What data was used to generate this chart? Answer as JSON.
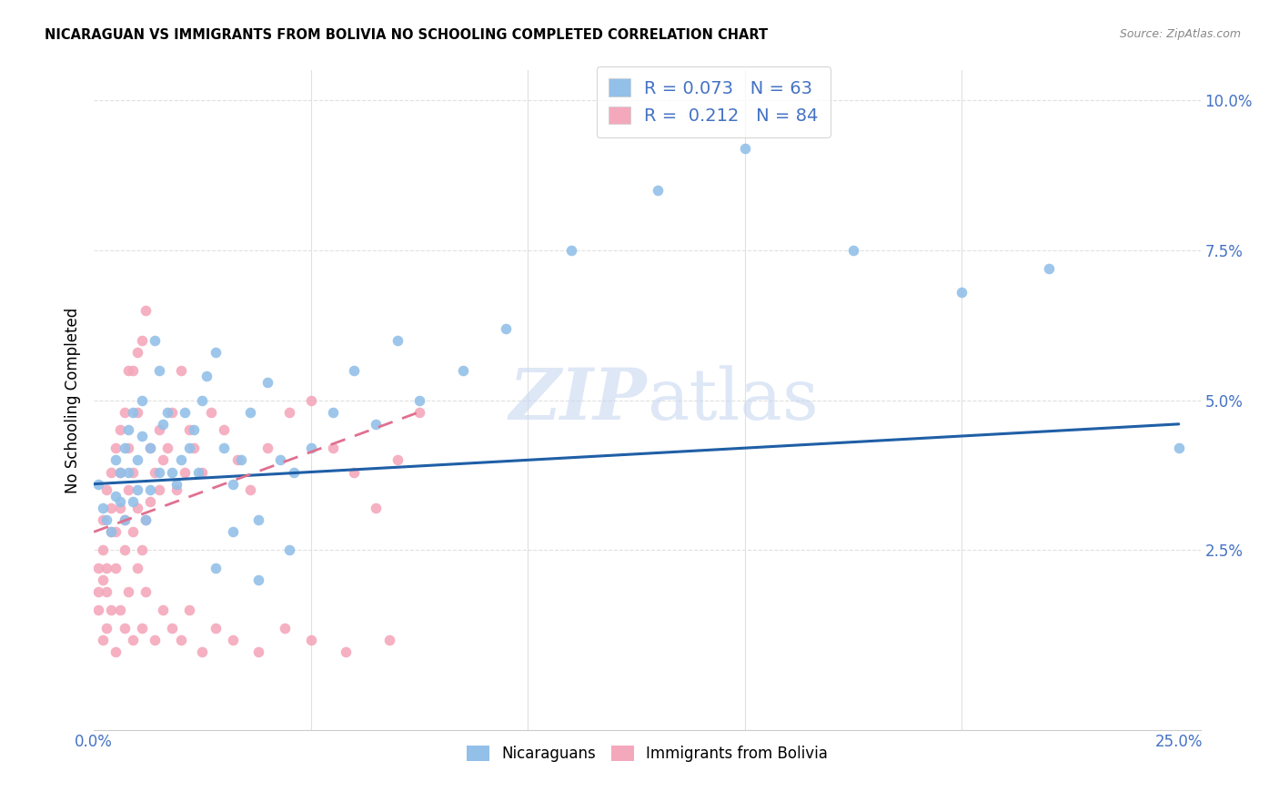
{
  "title": "NICARAGUAN VS IMMIGRANTS FROM BOLIVIA NO SCHOOLING COMPLETED CORRELATION CHART",
  "source": "Source: ZipAtlas.com",
  "ylabel": "No Schooling Completed",
  "nicaraguan_color": "#92c0e8",
  "bolivia_color": "#f4a8bc",
  "trendline_nicaraguan_color": "#1f5fa6",
  "trendline_bolivia_color": "#e07090",
  "watermark_color": "#c8d8f0",
  "legend_text_color": "#4472c4",
  "ytick_color": "#4472c4",
  "xtick_color": "#4472c4",
  "grid_color": "#e0e0e0",
  "xlim": [
    0.0,
    0.255
  ],
  "ylim": [
    -0.005,
    0.105
  ],
  "nic_R": "0.073",
  "nic_N": "63",
  "bol_R": "0.212",
  "bol_N": "84",
  "nicaraguans_label": "Nicaraguans",
  "bolivia_label": "Immigrants from Bolivia",
  "nic_x": [
    0.001,
    0.002,
    0.003,
    0.004,
    0.005,
    0.005,
    0.006,
    0.006,
    0.007,
    0.007,
    0.008,
    0.008,
    0.009,
    0.009,
    0.01,
    0.01,
    0.011,
    0.011,
    0.012,
    0.013,
    0.013,
    0.014,
    0.015,
    0.015,
    0.016,
    0.017,
    0.018,
    0.019,
    0.02,
    0.021,
    0.022,
    0.023,
    0.024,
    0.025,
    0.026,
    0.028,
    0.03,
    0.032,
    0.034,
    0.036,
    0.038,
    0.04,
    0.043,
    0.046,
    0.05,
    0.055,
    0.06,
    0.065,
    0.07,
    0.075,
    0.085,
    0.095,
    0.11,
    0.13,
    0.15,
    0.175,
    0.2,
    0.22,
    0.25,
    0.028,
    0.032,
    0.038,
    0.045
  ],
  "nic_y": [
    0.036,
    0.032,
    0.03,
    0.028,
    0.034,
    0.04,
    0.033,
    0.038,
    0.03,
    0.042,
    0.038,
    0.045,
    0.033,
    0.048,
    0.035,
    0.04,
    0.044,
    0.05,
    0.03,
    0.035,
    0.042,
    0.06,
    0.038,
    0.055,
    0.046,
    0.048,
    0.038,
    0.036,
    0.04,
    0.048,
    0.042,
    0.045,
    0.038,
    0.05,
    0.054,
    0.058,
    0.042,
    0.036,
    0.04,
    0.048,
    0.03,
    0.053,
    0.04,
    0.038,
    0.042,
    0.048,
    0.055,
    0.046,
    0.06,
    0.05,
    0.055,
    0.062,
    0.075,
    0.085,
    0.092,
    0.075,
    0.068,
    0.072,
    0.042,
    0.022,
    0.028,
    0.02,
    0.025
  ],
  "bol_x": [
    0.001,
    0.001,
    0.001,
    0.002,
    0.002,
    0.002,
    0.003,
    0.003,
    0.003,
    0.004,
    0.004,
    0.004,
    0.005,
    0.005,
    0.005,
    0.006,
    0.006,
    0.006,
    0.007,
    0.007,
    0.007,
    0.008,
    0.008,
    0.008,
    0.009,
    0.009,
    0.009,
    0.01,
    0.01,
    0.01,
    0.011,
    0.011,
    0.012,
    0.012,
    0.013,
    0.013,
    0.014,
    0.015,
    0.015,
    0.016,
    0.017,
    0.018,
    0.019,
    0.02,
    0.021,
    0.022,
    0.023,
    0.025,
    0.027,
    0.03,
    0.033,
    0.036,
    0.04,
    0.045,
    0.05,
    0.055,
    0.06,
    0.065,
    0.07,
    0.075,
    0.002,
    0.003,
    0.004,
    0.005,
    0.006,
    0.007,
    0.008,
    0.009,
    0.01,
    0.011,
    0.012,
    0.014,
    0.016,
    0.018,
    0.02,
    0.022,
    0.025,
    0.028,
    0.032,
    0.038,
    0.044,
    0.05,
    0.058,
    0.068
  ],
  "bol_y": [
    0.022,
    0.018,
    0.015,
    0.025,
    0.02,
    0.03,
    0.018,
    0.035,
    0.022,
    0.028,
    0.038,
    0.032,
    0.022,
    0.042,
    0.028,
    0.038,
    0.045,
    0.032,
    0.03,
    0.048,
    0.025,
    0.042,
    0.055,
    0.035,
    0.055,
    0.038,
    0.028,
    0.032,
    0.058,
    0.048,
    0.025,
    0.06,
    0.03,
    0.065,
    0.033,
    0.042,
    0.038,
    0.035,
    0.045,
    0.04,
    0.042,
    0.048,
    0.035,
    0.055,
    0.038,
    0.045,
    0.042,
    0.038,
    0.048,
    0.045,
    0.04,
    0.035,
    0.042,
    0.048,
    0.05,
    0.042,
    0.038,
    0.032,
    0.04,
    0.048,
    0.01,
    0.012,
    0.015,
    0.008,
    0.015,
    0.012,
    0.018,
    0.01,
    0.022,
    0.012,
    0.018,
    0.01,
    0.015,
    0.012,
    0.01,
    0.015,
    0.008,
    0.012,
    0.01,
    0.008,
    0.012,
    0.01,
    0.008,
    0.01
  ],
  "nic_trend_x": [
    0.0,
    0.25
  ],
  "nic_trend_y": [
    0.036,
    0.046
  ],
  "bol_trend_x": [
    0.0,
    0.075
  ],
  "bol_trend_y": [
    0.028,
    0.048
  ]
}
